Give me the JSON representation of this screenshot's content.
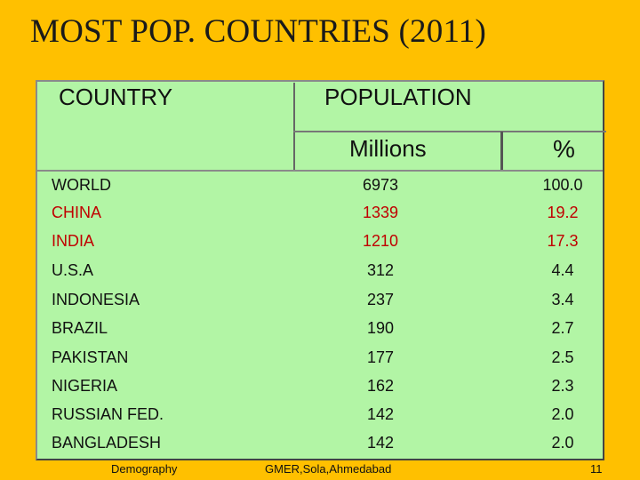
{
  "title": "MOST POP. COUNTRIES (2011)",
  "headers": {
    "country": "COUNTRY",
    "population": "POPULATION",
    "millions": "Millions",
    "percent": "%"
  },
  "rows": [
    {
      "country": "WORLD",
      "millions": "6973",
      "percent": "100.0"
    },
    {
      "country": "CHINA",
      "millions": "1339",
      "percent": "19.2"
    },
    {
      "country": "INDIA",
      "millions": "1210",
      "percent": "17.3"
    },
    {
      "country": "U.S.A",
      "millions": "312",
      "percent": "4.4"
    },
    {
      "country": "INDONESIA",
      "millions": "237",
      "percent": "3.4"
    },
    {
      "country": "BRAZIL",
      "millions": "190",
      "percent": "2.7"
    },
    {
      "country": "PAKISTAN",
      "millions": "177",
      "percent": "2.5"
    },
    {
      "country": "NIGERIA",
      "millions": "162",
      "percent": "2.3"
    },
    {
      "country": "RUSSIAN FED.",
      "millions": "142",
      "percent": "2.0"
    },
    {
      "country": "BANGLADESH",
      "millions": "142",
      "percent": "2.0"
    }
  ],
  "highlight_color": "#C00000",
  "footer": {
    "left": "Demography",
    "center": "GMER,Sola,Ahmedabad",
    "page": "11"
  }
}
